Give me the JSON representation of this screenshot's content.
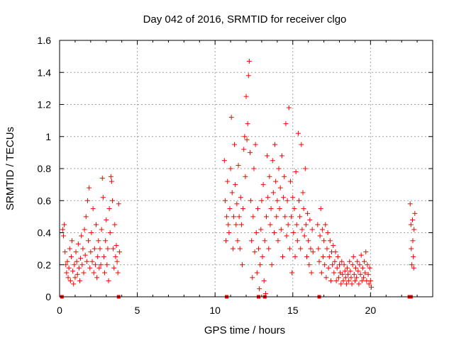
{
  "chart_data": {
    "type": "scatter",
    "title": "Day 042 of 2016, SRMTID for receiver clgo",
    "xlabel": "GPS time / hours",
    "ylabel": "SRMTID / TECUs",
    "xlim": [
      0,
      24
    ],
    "ylim": [
      0,
      1.6
    ],
    "xticks": [
      0,
      5,
      10,
      15,
      20
    ],
    "yticks": [
      0,
      0.2,
      0.4,
      0.6,
      0.8,
      1,
      1.2,
      1.4,
      1.6
    ],
    "xtick_labels": [
      "0",
      "5",
      "10",
      "15",
      "20"
    ],
    "ytick_labels": [
      "0",
      "0.2",
      "0.4",
      "0.6",
      "0.8",
      "1",
      "1.2",
      "1.4",
      "1.6"
    ],
    "grid": true,
    "marker": "+",
    "color": "#ff0000",
    "series": [
      {
        "name": "SRMTID",
        "points": [
          [
            0.2,
            0.42
          ],
          [
            0.25,
            0.38
          ],
          [
            0.3,
            0.45
          ],
          [
            0.35,
            0.28
          ],
          [
            0.4,
            0.2
          ],
          [
            0.45,
            0.15
          ],
          [
            0.5,
            0.22
          ],
          [
            0.55,
            0.12
          ],
          [
            0.6,
            0.18
          ],
          [
            0.65,
            0.3
          ],
          [
            0.7,
            0.1
          ],
          [
            0.75,
            0.25
          ],
          [
            0.8,
            0.35
          ],
          [
            0.85,
            0.16
          ],
          [
            0.9,
            0.08
          ],
          [
            0.95,
            0.2
          ],
          [
            1.0,
            0.12
          ],
          [
            1.05,
            0.28
          ],
          [
            1.1,
            0.22
          ],
          [
            1.15,
            0.14
          ],
          [
            1.2,
            0.33
          ],
          [
            1.25,
            0.18
          ],
          [
            1.3,
            0.1
          ],
          [
            1.35,
            0.24
          ],
          [
            1.4,
            0.38
          ],
          [
            1.45,
            0.2
          ],
          [
            1.5,
            0.3
          ],
          [
            1.55,
            0.15
          ],
          [
            1.6,
            0.42
          ],
          [
            1.65,
            0.26
          ],
          [
            1.7,
            0.5
          ],
          [
            1.75,
            0.22
          ],
          [
            1.8,
            0.6
          ],
          [
            1.85,
            0.35
          ],
          [
            1.9,
            0.68
          ],
          [
            1.95,
            0.18
          ],
          [
            2.0,
            0.28
          ],
          [
            2.05,
            0.4
          ],
          [
            2.1,
            0.22
          ],
          [
            2.15,
            0.55
          ],
          [
            2.2,
            0.15
          ],
          [
            2.25,
            0.3
          ],
          [
            2.3,
            0.2
          ],
          [
            2.35,
            0.45
          ],
          [
            2.4,
            0.12
          ],
          [
            2.45,
            0.25
          ],
          [
            2.5,
            0.35
          ],
          [
            2.55,
            0.18
          ],
          [
            2.6,
            0.3
          ],
          [
            2.65,
            0.2
          ],
          [
            2.7,
            0.42
          ],
          [
            2.75,
            0.74
          ],
          [
            2.8,
            0.62
          ],
          [
            2.85,
            0.25
          ],
          [
            2.9,
            0.15
          ],
          [
            2.95,
            0.35
          ],
          [
            3.0,
            0.48
          ],
          [
            3.05,
            0.2
          ],
          [
            3.1,
            0.3
          ],
          [
            3.15,
            0.1
          ],
          [
            3.2,
            0.55
          ],
          [
            3.25,
            0.4
          ],
          [
            3.3,
            0.75
          ],
          [
            3.35,
            0.72
          ],
          [
            3.4,
            0.6
          ],
          [
            3.45,
            0.3
          ],
          [
            3.5,
            0.18
          ],
          [
            3.55,
            0.45
          ],
          [
            3.6,
            0.25
          ],
          [
            3.65,
            0.32
          ],
          [
            3.7,
            0.22
          ],
          [
            3.75,
            0.15
          ],
          [
            3.8,
            0.58
          ],
          [
            3.85,
            0.28
          ],
          [
            10.6,
            0.85
          ],
          [
            10.65,
            0.6
          ],
          [
            10.7,
            0.35
          ],
          [
            10.75,
            0.5
          ],
          [
            10.8,
            0.72
          ],
          [
            10.85,
            0.45
          ],
          [
            10.9,
            0.4
          ],
          [
            10.95,
            0.55
          ],
          [
            11.0,
            0.8
          ],
          [
            11.05,
            1.12
          ],
          [
            11.1,
            0.65
          ],
          [
            11.15,
            0.3
          ],
          [
            11.2,
            0.5
          ],
          [
            11.25,
            0.95
          ],
          [
            11.3,
            0.7
          ],
          [
            11.35,
            0.45
          ],
          [
            11.4,
            0.58
          ],
          [
            11.45,
            0.35
          ],
          [
            11.5,
            0.82
          ],
          [
            11.55,
            0.5
          ],
          [
            11.6,
            0.3
          ],
          [
            11.65,
            0.62
          ],
          [
            11.7,
            0.45
          ],
          [
            11.75,
            0.2
          ],
          [
            11.8,
            0.55
          ],
          [
            11.85,
            0.92
          ],
          [
            11.9,
            1.0
          ],
          [
            11.95,
            0.75
          ],
          [
            12.0,
            1.25
          ],
          [
            12.05,
            0.98
          ],
          [
            12.1,
            1.08
          ],
          [
            12.15,
            1.38
          ],
          [
            12.2,
            1.47
          ],
          [
            12.25,
            0.9
          ],
          [
            12.3,
            0.6
          ],
          [
            12.35,
            0.35
          ],
          [
            12.4,
            0.12
          ],
          [
            12.45,
            0.5
          ],
          [
            12.5,
            0.8
          ],
          [
            12.55,
            0.28
          ],
          [
            12.6,
            0.95
          ],
          [
            12.65,
            0.4
          ],
          [
            12.7,
            0.15
          ],
          [
            12.75,
            0.55
          ],
          [
            12.8,
            0.3
          ],
          [
            12.85,
            0.05
          ],
          [
            12.9,
            0.2
          ],
          [
            12.95,
            0.42
          ],
          [
            13.0,
            0.6
          ],
          [
            13.05,
            0.25
          ],
          [
            13.1,
            0.7
          ],
          [
            13.15,
            0.1
          ],
          [
            13.2,
            0.35
          ],
          [
            13.25,
            0.02
          ],
          [
            13.3,
            0.5
          ],
          [
            13.35,
            0.88
          ],
          [
            13.4,
            0.62
          ],
          [
            13.45,
            0.3
          ],
          [
            13.5,
            0.75
          ],
          [
            13.55,
            0.45
          ],
          [
            13.6,
            0.55
          ],
          [
            13.65,
            0.2
          ],
          [
            13.7,
            0.85
          ],
          [
            13.75,
            0.65
          ],
          [
            13.8,
            0.4
          ],
          [
            13.85,
            0.95
          ],
          [
            13.9,
            0.72
          ],
          [
            13.95,
            0.5
          ],
          [
            14.0,
            0.6
          ],
          [
            14.05,
            0.35
          ],
          [
            14.1,
            0.8
          ],
          [
            14.15,
            0.55
          ],
          [
            14.2,
            0.68
          ],
          [
            14.25,
            0.42
          ],
          [
            14.3,
            0.88
          ],
          [
            14.35,
            0.25
          ],
          [
            14.4,
            0.62
          ],
          [
            14.45,
            0.75
          ],
          [
            14.5,
            0.5
          ],
          [
            14.55,
            1.08
          ],
          [
            14.6,
            0.38
          ],
          [
            14.65,
            0.6
          ],
          [
            14.7,
            0.45
          ],
          [
            14.75,
            1.18
          ],
          [
            14.8,
            0.3
          ],
          [
            14.85,
            0.72
          ],
          [
            14.9,
            0.5
          ],
          [
            14.95,
            0.15
          ],
          [
            15.0,
            0.62
          ],
          [
            15.05,
            0.4
          ],
          [
            15.1,
            0.55
          ],
          [
            15.15,
            0.25
          ],
          [
            15.2,
            0.78
          ],
          [
            15.25,
            0.45
          ],
          [
            15.3,
            0.35
          ],
          [
            15.35,
            1.02
          ],
          [
            15.4,
            0.6
          ],
          [
            15.45,
            0.5
          ],
          [
            15.5,
            0.3
          ],
          [
            15.55,
            0.95
          ],
          [
            15.6,
            0.42
          ],
          [
            15.65,
            0.65
          ],
          [
            15.7,
            0.55
          ],
          [
            15.75,
            0.38
          ],
          [
            15.8,
            0.8
          ],
          [
            15.85,
            0.45
          ],
          [
            15.9,
            0.25
          ],
          [
            15.95,
            0.52
          ],
          [
            16.0,
            0.35
          ],
          [
            16.05,
            0.2
          ],
          [
            16.1,
            0.48
          ],
          [
            16.15,
            0.3
          ],
          [
            16.2,
            0.15
          ],
          [
            16.25,
            0.42
          ],
          [
            16.3,
            0.28
          ],
          [
            16.6,
            0.45
          ],
          [
            16.65,
            0.3
          ],
          [
            16.7,
            0.22
          ],
          [
            16.75,
            0.38
          ],
          [
            16.8,
            0.55
          ],
          [
            16.85,
            0.15
          ],
          [
            16.9,
            0.42
          ],
          [
            16.95,
            0.25
          ],
          [
            17.0,
            0.35
          ],
          [
            17.05,
            0.2
          ],
          [
            17.1,
            0.45
          ],
          [
            17.15,
            0.12
          ],
          [
            17.2,
            0.3
          ],
          [
            17.25,
            0.4
          ],
          [
            17.3,
            0.18
          ],
          [
            17.35,
            0.25
          ],
          [
            17.4,
            0.35
          ],
          [
            17.45,
            0.1
          ],
          [
            17.5,
            0.28
          ],
          [
            17.55,
            0.2
          ],
          [
            17.6,
            0.32
          ],
          [
            17.65,
            0.15
          ],
          [
            17.7,
            0.22
          ],
          [
            17.75,
            0.28
          ],
          [
            17.8,
            0.1
          ],
          [
            17.85,
            0.18
          ],
          [
            17.9,
            0.25
          ],
          [
            17.95,
            0.12
          ],
          [
            18.0,
            0.2
          ],
          [
            18.05,
            0.15
          ],
          [
            18.1,
            0.08
          ],
          [
            18.15,
            0.22
          ],
          [
            18.2,
            0.14
          ],
          [
            18.25,
            0.1
          ],
          [
            18.3,
            0.2
          ],
          [
            18.35,
            0.16
          ],
          [
            18.4,
            0.12
          ],
          [
            18.45,
            0.08
          ],
          [
            18.5,
            0.18
          ],
          [
            18.55,
            0.14
          ],
          [
            18.6,
            0.1
          ],
          [
            18.65,
            0.22
          ],
          [
            18.7,
            0.16
          ],
          [
            18.75,
            0.12
          ],
          [
            18.8,
            0.08
          ],
          [
            18.85,
            0.2
          ],
          [
            18.9,
            0.25
          ],
          [
            18.95,
            0.14
          ],
          [
            19.0,
            0.1
          ],
          [
            19.05,
            0.18
          ],
          [
            19.1,
            0.12
          ],
          [
            19.15,
            0.22
          ],
          [
            19.2,
            0.16
          ],
          [
            19.25,
            0.08
          ],
          [
            19.3,
            0.2
          ],
          [
            19.35,
            0.14
          ],
          [
            19.4,
            0.26
          ],
          [
            19.45,
            0.1
          ],
          [
            19.5,
            0.18
          ],
          [
            19.55,
            0.12
          ],
          [
            19.6,
            0.22
          ],
          [
            19.65,
            0.15
          ],
          [
            19.7,
            0.28
          ],
          [
            19.75,
            0.1
          ],
          [
            19.8,
            0.2
          ],
          [
            19.85,
            0.14
          ],
          [
            19.9,
            0.08
          ],
          [
            19.95,
            0.18
          ],
          [
            20.0,
            0.1
          ],
          [
            20.05,
            0.06
          ],
          [
            22.55,
            0.58
          ],
          [
            22.6,
            0.45
          ],
          [
            22.62,
            0.3
          ],
          [
            22.65,
            0.2
          ],
          [
            22.7,
            0.48
          ],
          [
            22.72,
            0.35
          ],
          [
            22.75,
            0.25
          ],
          [
            22.78,
            0.18
          ],
          [
            22.8,
            0.42
          ],
          [
            22.85,
            0.52
          ]
        ]
      }
    ],
    "baseline_markers_x": [
      0.15,
      3.8,
      10.75,
      12.8,
      13.2,
      16.7,
      22.5,
      22.6
    ]
  }
}
